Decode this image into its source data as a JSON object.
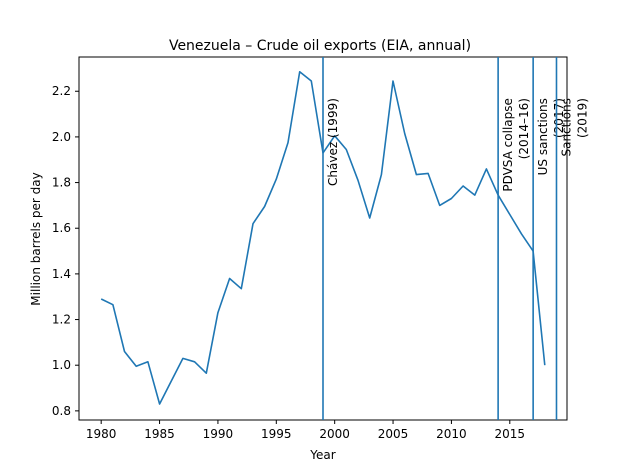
{
  "chart_data": {
    "type": "line",
    "title": "Venezuela – Crude oil exports (EIA, annual)",
    "xlabel": "Year",
    "ylabel": "Million barrels per day",
    "xlim": [
      1978.1,
      2019.9
    ],
    "ylim": [
      0.76,
      2.35
    ],
    "xticks": [
      1980,
      1985,
      1990,
      1995,
      2000,
      2005,
      2010,
      2015
    ],
    "yticks": [
      0.8,
      1.0,
      1.2,
      1.4,
      1.6,
      1.8,
      2.0,
      2.2
    ],
    "grid": false,
    "line_color": "#1f77b4",
    "series": [
      {
        "name": "Crude oil exports",
        "x": [
          1980,
          1981,
          1982,
          1983,
          1984,
          1985,
          1986,
          1987,
          1988,
          1989,
          1990,
          1991,
          1992,
          1993,
          1994,
          1995,
          1996,
          1997,
          1998,
          1999,
          2000,
          2001,
          2002,
          2003,
          2004,
          2005,
          2006,
          2007,
          2008,
          2009,
          2010,
          2011,
          2012,
          2013,
          2014,
          2015,
          2016,
          2017,
          2018
        ],
        "values": [
          1.29,
          1.265,
          1.06,
          0.995,
          1.015,
          0.83,
          0.93,
          1.03,
          1.015,
          0.965,
          1.23,
          1.38,
          1.335,
          1.62,
          1.695,
          1.815,
          1.975,
          2.285,
          2.245,
          1.93,
          2.005,
          1.945,
          1.81,
          1.645,
          1.835,
          2.245,
          2.015,
          1.835,
          1.84,
          1.7,
          1.73,
          1.785,
          1.745,
          1.86,
          1.745,
          1.66,
          1.575,
          1.5,
          1.0
        ]
      }
    ],
    "annotations": [
      {
        "x": 1999,
        "lines": [
          "Chávez (1999)"
        ]
      },
      {
        "x": 2014,
        "lines": [
          "PDVSA collapse",
          "(2014–16)"
        ]
      },
      {
        "x": 2017,
        "lines": [
          "US sanctions",
          "(2017)"
        ]
      },
      {
        "x": 2019,
        "lines": [
          "Sanctions",
          "(2019)"
        ]
      }
    ]
  }
}
